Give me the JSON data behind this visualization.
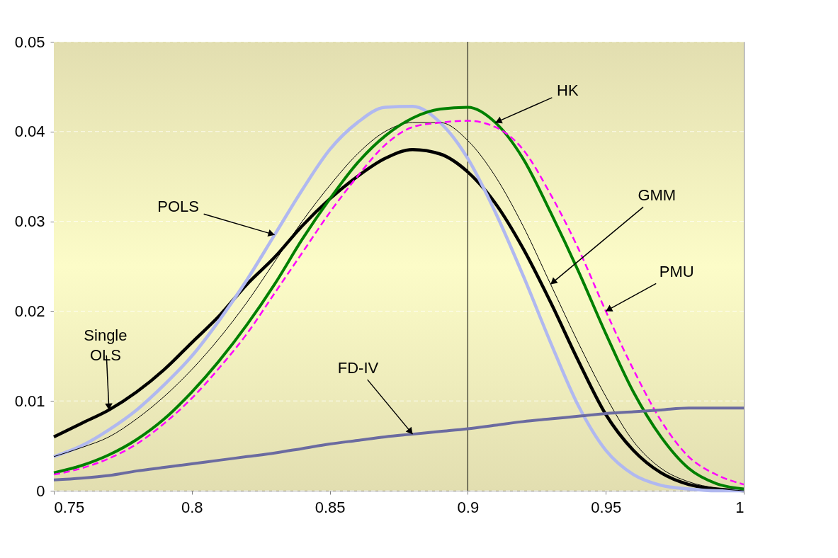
{
  "chart_data": {
    "type": "line",
    "x": [
      0.75,
      0.76,
      0.77,
      0.78,
      0.79,
      0.8,
      0.81,
      0.82,
      0.83,
      0.84,
      0.85,
      0.86,
      0.87,
      0.88,
      0.89,
      0.9,
      0.91,
      0.92,
      0.93,
      0.94,
      0.95,
      0.96,
      0.97,
      0.98,
      0.99,
      1.0
    ],
    "series": [
      {
        "color": "#000000",
        "values": [
          0.006,
          0.0075,
          0.009,
          0.011,
          0.0135,
          0.0165,
          0.0195,
          0.023,
          0.026,
          0.0295,
          0.0325,
          0.035,
          0.037,
          0.038,
          0.0375,
          0.0355,
          0.032,
          0.027,
          0.021,
          0.0145,
          0.0085,
          0.0045,
          0.002,
          0.0007,
          0.0002,
          0.0
        ]
      },
      {
        "color": "#b0b8f0",
        "values": [
          0.0038,
          0.005,
          0.0068,
          0.009,
          0.0118,
          0.015,
          0.019,
          0.0235,
          0.0285,
          0.0335,
          0.038,
          0.041,
          0.0427,
          0.0428,
          0.041,
          0.037,
          0.031,
          0.024,
          0.0165,
          0.0095,
          0.0045,
          0.0018,
          0.0006,
          0.0002,
          0.0,
          0.0
        ]
      },
      {
        "color": "#000000",
        "values": [
          0.0038,
          0.0048,
          0.006,
          0.008,
          0.0105,
          0.0135,
          0.017,
          0.021,
          0.0255,
          0.03,
          0.034,
          0.0375,
          0.04,
          0.041,
          0.041,
          0.039,
          0.035,
          0.0295,
          0.023,
          0.0165,
          0.0105,
          0.0055,
          0.0025,
          0.001,
          0.0003,
          0.0
        ]
      },
      {
        "color": "#008000",
        "values": [
          0.002,
          0.0028,
          0.004,
          0.0057,
          0.008,
          0.011,
          0.0145,
          0.0185,
          0.023,
          0.028,
          0.0325,
          0.0365,
          0.0395,
          0.0415,
          0.0425,
          0.0427,
          0.041,
          0.037,
          0.031,
          0.0245,
          0.0175,
          0.011,
          0.006,
          0.0025,
          0.0008,
          0.0002
        ]
      },
      {
        "color": "#ff00ff",
        "line_style": "dashed",
        "values": [
          0.0018,
          0.0025,
          0.0036,
          0.0052,
          0.0075,
          0.0103,
          0.0137,
          0.0175,
          0.022,
          0.0265,
          0.031,
          0.035,
          0.0385,
          0.0405,
          0.041,
          0.0412,
          0.0405,
          0.038,
          0.033,
          0.027,
          0.02,
          0.0135,
          0.0078,
          0.0038,
          0.0018,
          0.0007
        ]
      },
      {
        "color": "#6b6ba0",
        "values": [
          0.0012,
          0.0014,
          0.0017,
          0.0022,
          0.0026,
          0.003,
          0.0034,
          0.0038,
          0.0042,
          0.0047,
          0.0052,
          0.0056,
          0.006,
          0.0063,
          0.0066,
          0.0069,
          0.0073,
          0.0077,
          0.008,
          0.0083,
          0.0086,
          0.0088,
          0.009,
          0.0092,
          0.0092,
          0.0092
        ]
      }
    ],
    "annotations": [
      {
        "text": "Single OLS",
        "x": 0.77,
        "y": 0.009
      },
      {
        "text": "POLS",
        "x": 0.83,
        "y": 0.0285
      },
      {
        "text": "GMM",
        "x": 0.93,
        "y": 0.023
      },
      {
        "text": "HK",
        "x": 0.91,
        "y": 0.041
      },
      {
        "text": "PMU",
        "x": 0.95,
        "y": 0.02
      },
      {
        "text": "FD-IV",
        "x": 0.88,
        "y": 0.0063
      }
    ],
    "ref_lines": [
      {
        "axis": "x",
        "value": 0.9,
        "color": "#000000"
      }
    ],
    "xlim": [
      0.75,
      1
    ],
    "xticks": [
      0.75,
      0.8,
      0.85,
      0.9,
      0.95,
      1
    ],
    "ylim": [
      0,
      0.05
    ],
    "yticks": [
      0,
      0.01,
      0.02,
      0.03,
      0.04,
      0.05
    ],
    "grid": "y"
  }
}
